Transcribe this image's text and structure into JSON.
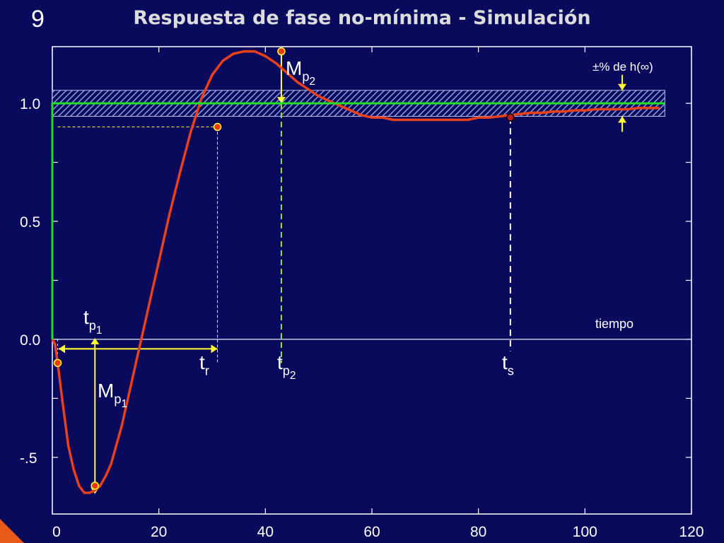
{
  "slide": {
    "number": "9",
    "title": "Respuesta de fase no-mínima - Simulación"
  },
  "colors": {
    "background": "#0a0a5c",
    "response": "#e8401a",
    "reference": "#22dd22",
    "markers": "#ffff33",
    "band_hatch": "#7f8fd8",
    "axes": "#ffffff"
  },
  "chart_data": {
    "type": "line",
    "title": "Respuesta de fase no-mínima - Simulación",
    "xlabel": "tiempo",
    "ylabel": "",
    "xlim": [
      0,
      120
    ],
    "ylim": [
      -0.74,
      1.24
    ],
    "x_ticks": [
      0,
      20,
      40,
      60,
      80,
      100,
      120
    ],
    "x_tick_labels": [
      "0",
      "20",
      "40",
      "60",
      "80",
      "100",
      "120"
    ],
    "y_ticks": [
      -0.5,
      0.0,
      0.5,
      1.0
    ],
    "y_tick_labels": [
      "-.5",
      "0.0",
      "0.5",
      "1.0"
    ],
    "grid": false,
    "series": [
      {
        "style": "response",
        "x": [
          0,
          0.5,
          1,
          2,
          3,
          4,
          5,
          6,
          7,
          8,
          9,
          10,
          11,
          12,
          13,
          14,
          15,
          16,
          17,
          18,
          19,
          20,
          22,
          24,
          26,
          28,
          30,
          32,
          34,
          36,
          38,
          40,
          42,
          44,
          46,
          48,
          50,
          52,
          54,
          56,
          58,
          60,
          62,
          64,
          66,
          68,
          70,
          72,
          74,
          76,
          78,
          80,
          82,
          84,
          86,
          88,
          90,
          92,
          94,
          96,
          98,
          100,
          102,
          104,
          106,
          108,
          110,
          112,
          114
        ],
        "y": [
          0,
          -0.02,
          -0.1,
          -0.28,
          -0.45,
          -0.55,
          -0.62,
          -0.65,
          -0.65,
          -0.64,
          -0.62,
          -0.58,
          -0.53,
          -0.45,
          -0.37,
          -0.27,
          -0.17,
          -0.07,
          0.03,
          0.13,
          0.23,
          0.33,
          0.53,
          0.71,
          0.88,
          1.02,
          1.12,
          1.18,
          1.21,
          1.22,
          1.22,
          1.2,
          1.17,
          1.13,
          1.09,
          1.06,
          1.03,
          1.01,
          0.99,
          0.97,
          0.95,
          0.94,
          0.94,
          0.93,
          0.93,
          0.93,
          0.93,
          0.93,
          0.93,
          0.93,
          0.93,
          0.94,
          0.94,
          0.945,
          0.95,
          0.955,
          0.96,
          0.96,
          0.965,
          0.965,
          0.97,
          0.97,
          0.975,
          0.975,
          0.975,
          0.975,
          0.98,
          0.98,
          0.98
        ]
      },
      {
        "style": "reference",
        "x": [
          0,
          0,
          115
        ],
        "y": [
          0,
          1.0,
          1.0
        ]
      }
    ],
    "tolerance_band": {
      "y_min": 0.945,
      "y_max": 1.055,
      "x_start": 0,
      "x_end": 115
    },
    "key_points": [
      {
        "id": "mp1",
        "x": 8,
        "y": -0.62
      },
      {
        "id": "start",
        "x": 1,
        "y": -0.1
      },
      {
        "id": "tr",
        "x": 31,
        "y": 0.9
      },
      {
        "id": "mp2",
        "x": 43,
        "y": 1.22
      },
      {
        "id": "ts",
        "x": 86,
        "y": 0.94
      }
    ],
    "annotations": {
      "tp1": {
        "main": "t",
        "sub": "p",
        "subsub": "1"
      },
      "mp1": {
        "main": "M",
        "sub": "p",
        "subsub": "1"
      },
      "tr": {
        "main": "t",
        "sub": "r"
      },
      "tp2": {
        "main": "t",
        "sub": "p",
        "subsub": "2"
      },
      "mp2": {
        "main": "M",
        "sub": "p",
        "subsub": "2"
      },
      "ts": {
        "main": "t",
        "sub": "s"
      },
      "band_label": "±% de h(∞)",
      "time_label": "tiempo"
    }
  }
}
